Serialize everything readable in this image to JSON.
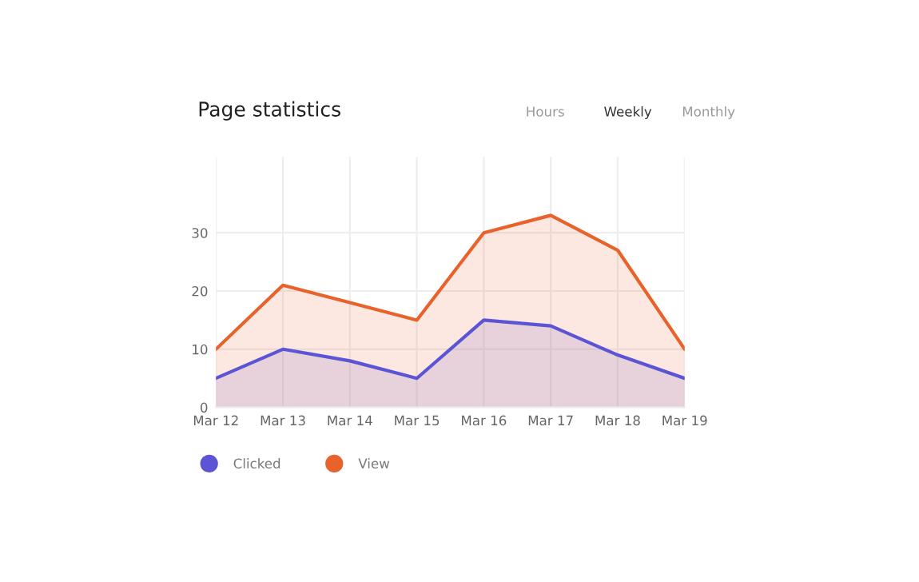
{
  "chart_data": {
    "type": "area",
    "title": "Page statistics",
    "annotations": [
      "Hours",
      "Weekly",
      "Monthly"
    ],
    "categories": [
      "Mar 12",
      "Mar 13",
      "Mar 14",
      "Mar 15",
      "Mar 16",
      "Mar 17",
      "Mar 18",
      "Mar 19"
    ],
    "series": [
      {
        "name": "Clicked",
        "color": "#5b55d6",
        "values": [
          5,
          10,
          8,
          5,
          15,
          14,
          9,
          5
        ]
      },
      {
        "name": "View",
        "color": "#e8622c",
        "values": [
          10,
          21,
          18,
          15,
          30,
          33,
          27,
          10
        ]
      }
    ],
    "ylim": [
      0,
      43
    ],
    "yticks": [
      0,
      10,
      20,
      30
    ],
    "grid": true,
    "legend": "bottom left",
    "marker": "none",
    "line_style": "solid"
  }
}
